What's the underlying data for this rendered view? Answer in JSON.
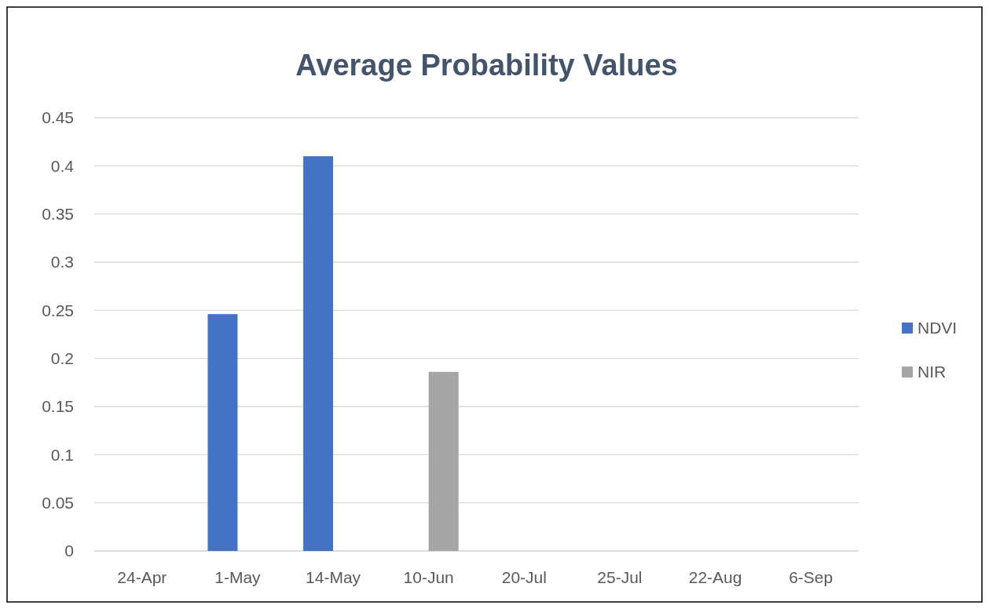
{
  "chart_data": {
    "type": "bar",
    "title": "Average Probability Values",
    "categories": [
      "24-Apr",
      "1-May",
      "14-May",
      "10-Jun",
      "20-Jul",
      "25-Jul",
      "22-Aug",
      "6-Sep"
    ],
    "series": [
      {
        "name": "NDVI",
        "color": "#4472c4",
        "values": [
          null,
          0.246,
          0.41,
          null,
          null,
          null,
          null,
          null
        ]
      },
      {
        "name": "NIR",
        "color": "#a5a5a5",
        "values": [
          null,
          null,
          null,
          0.186,
          null,
          null,
          null,
          null
        ]
      }
    ],
    "ylim": [
      0,
      0.45
    ],
    "yticks": [
      0,
      0.05,
      0.1,
      0.15,
      0.2,
      0.25,
      0.3,
      0.35,
      0.4,
      0.45
    ],
    "grid": "y",
    "legend": "right"
  }
}
